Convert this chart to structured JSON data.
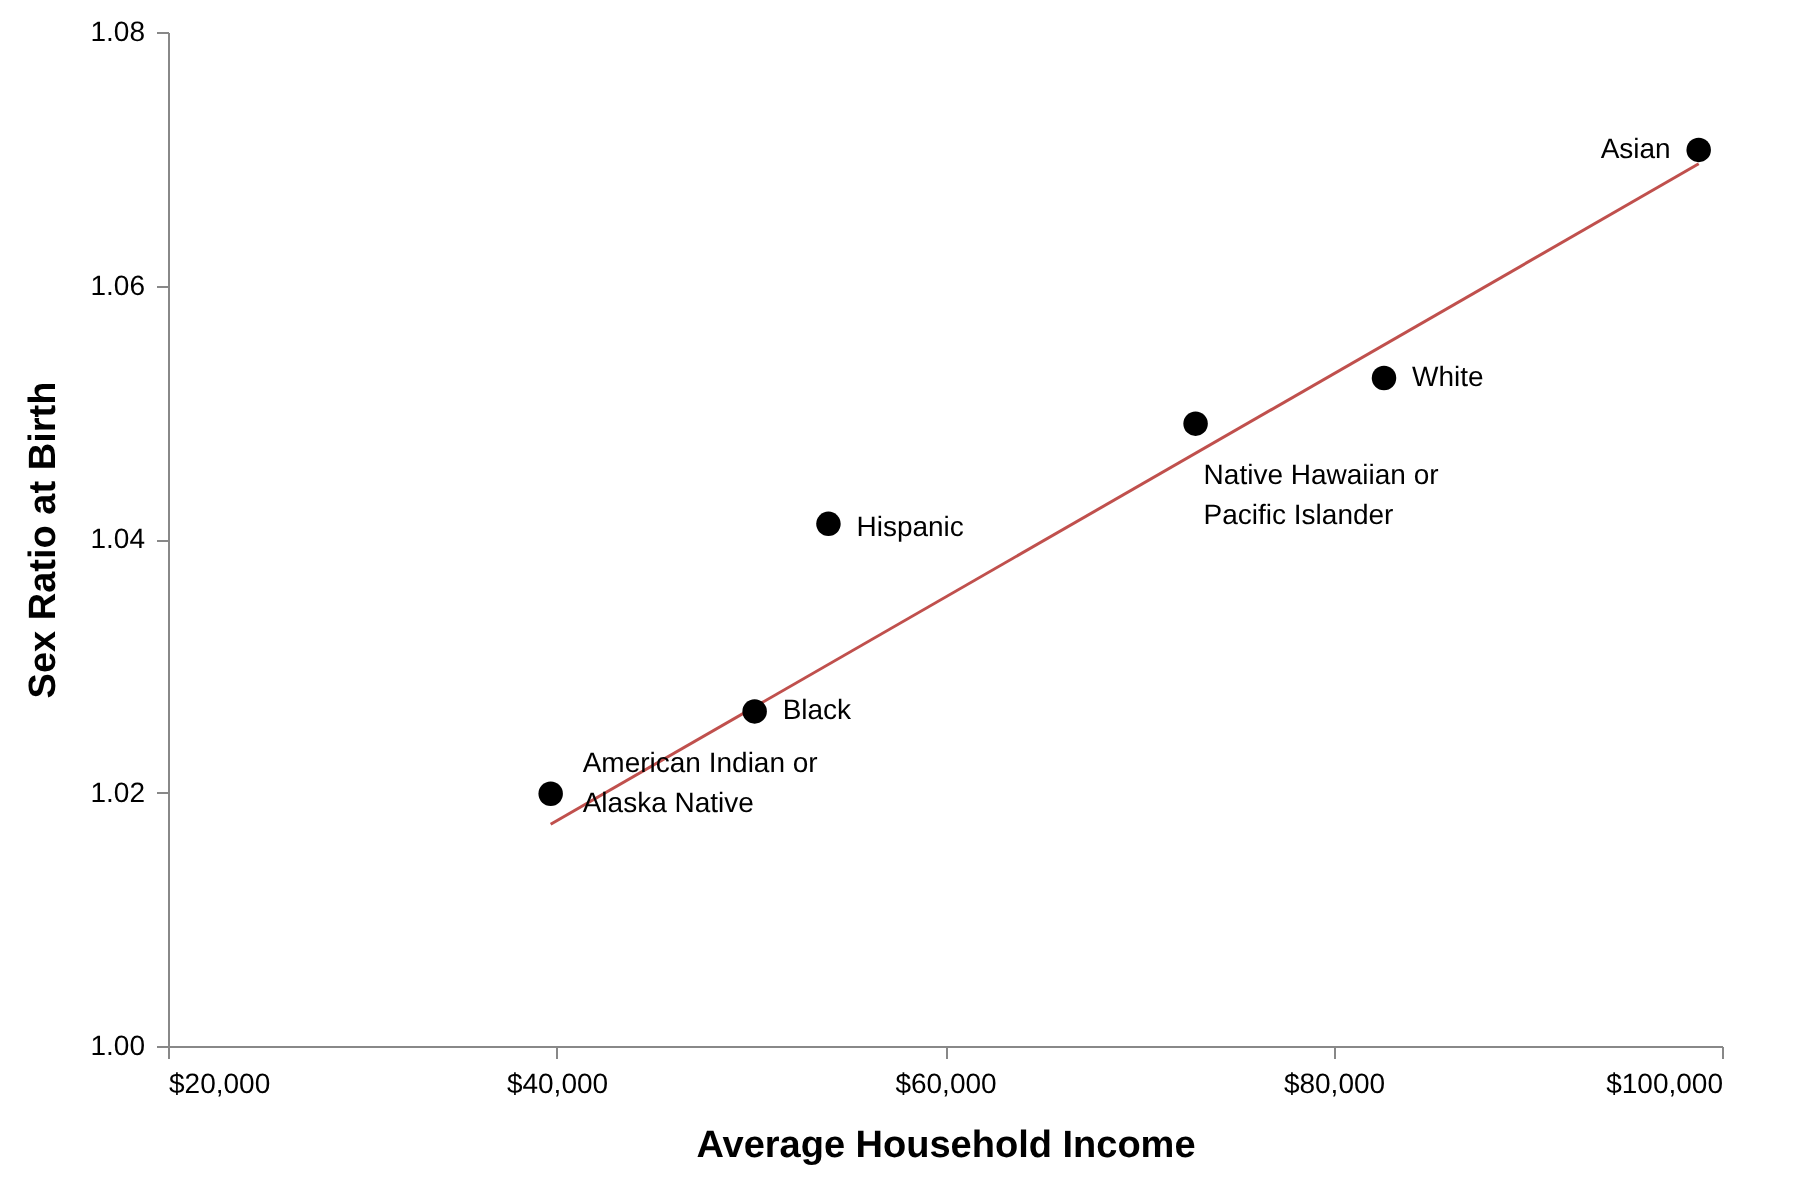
{
  "chart_data": {
    "type": "scatter",
    "xlabel": "Average Household Income",
    "ylabel": "Sex Ratio at Birth",
    "x": [
      39700,
      50200,
      54000,
      72900,
      82600,
      98800
    ],
    "series": [
      {
        "color": "#000000",
        "marker": "circle",
        "values": [
          1.0199,
          1.0264,
          1.0412,
          1.0491,
          1.0527,
          1.0707
        ]
      },
      {
        "type": "line",
        "color": "#c0504d",
        "x": [
          39700,
          98800
        ],
        "values": [
          1.0175,
          1.0696
        ]
      }
    ],
    "annotations": [
      {
        "text": "American Indian or\nAlaska Native",
        "x": 39700,
        "y": 1.0199
      },
      {
        "text": "Black",
        "x": 50200,
        "y": 1.0264
      },
      {
        "text": "Hispanic",
        "x": 54000,
        "y": 1.0412
      },
      {
        "text": "Native Hawaiian or\nPacific Islander",
        "x": 72900,
        "y": 1.0491
      },
      {
        "text": "White",
        "x": 82600,
        "y": 1.0527
      },
      {
        "text": "Asian",
        "x": 98800,
        "y": 1.0707
      }
    ],
    "xlim": [
      20000,
      100000
    ],
    "xticks": [
      {
        "value": 20000,
        "label": "$20,000"
      },
      {
        "value": 40000,
        "label": "$40,000"
      },
      {
        "value": 60000,
        "label": "$60,000"
      },
      {
        "value": 80000,
        "label": "$80,000"
      },
      {
        "value": 100000,
        "label": "$100,000"
      }
    ],
    "ylim": [
      1.0,
      1.08
    ],
    "yticks": [
      {
        "value": 1.0,
        "label": "1.00"
      },
      {
        "value": 1.02,
        "label": "1.02"
      },
      {
        "value": 1.04,
        "label": "1.04"
      },
      {
        "value": 1.06,
        "label": "1.06"
      },
      {
        "value": 1.08,
        "label": "1.08"
      }
    ],
    "grid": false
  }
}
